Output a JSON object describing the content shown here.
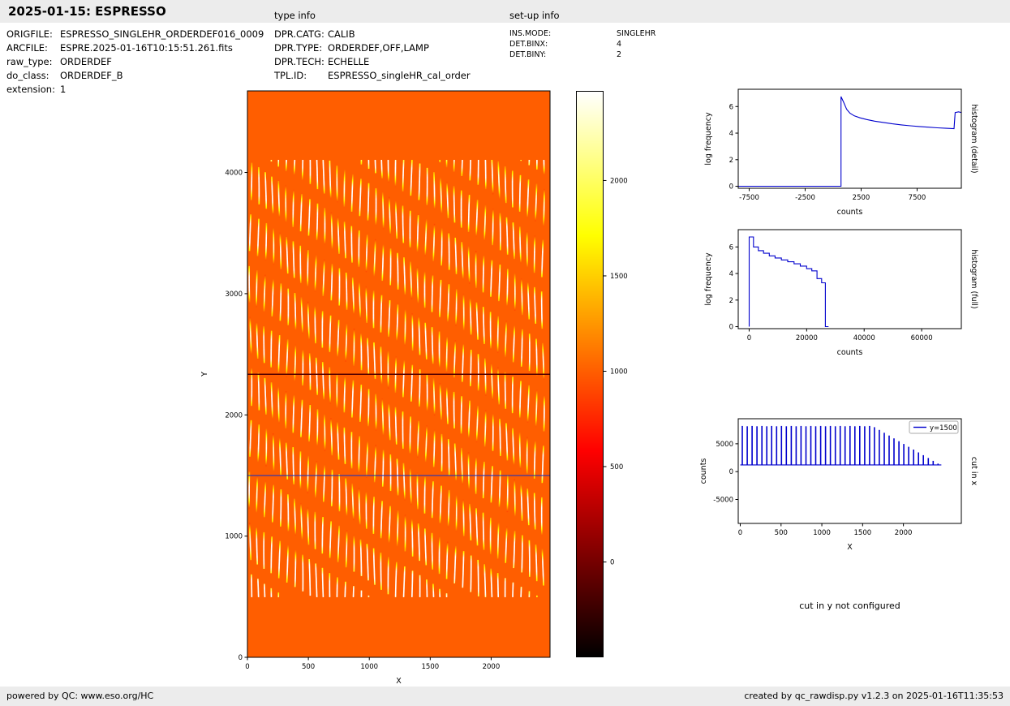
{
  "header": {
    "title": "2025-01-15: ESPRESSO",
    "type_info_label": "type info",
    "setup_info_label": "set-up info"
  },
  "metadata": {
    "file_info": [
      {
        "label": "ORIGFILE:",
        "value": "ESPRESSO_SINGLEHR_ORDERDEF016_0009"
      },
      {
        "label": "ARCFILE:",
        "value": "ESPRE.2025-01-16T10:15:51.261.fits"
      },
      {
        "label": "raw_type:",
        "value": "ORDERDEF"
      },
      {
        "label": "do_class:",
        "value": "ORDERDEF_B"
      },
      {
        "label": "extension:",
        "value": "1"
      }
    ],
    "type_info": [
      {
        "label": "DPR.CATG:",
        "value": "CALIB"
      },
      {
        "label": "DPR.TYPE:",
        "value": "ORDERDEF,OFF,LAMP"
      },
      {
        "label": "DPR.TECH:",
        "value": "ECHELLE"
      },
      {
        "label": "TPL.ID:",
        "value": "ESPRESSO_singleHR_cal_order"
      }
    ],
    "setup_info": [
      {
        "label": "INS.MODE:",
        "value": "SINGLEHR"
      },
      {
        "label": "DET.BINX:",
        "value": "4"
      },
      {
        "label": "DET.BINY:",
        "value": "2"
      }
    ]
  },
  "note_cut_y": "cut in y not configured",
  "footer": {
    "left": "powered by QC: www.eso.org/HC",
    "right": "created by qc_rawdisp.py v1.2.3 on 2025-01-16T11:35:53"
  },
  "chart_data": [
    {
      "id": "main_image",
      "type": "heatmap",
      "title": "",
      "xlabel": "X",
      "ylabel": "Y",
      "xlim": [
        0,
        2483
      ],
      "ylim": [
        0,
        4673
      ],
      "xticks": [
        0,
        500,
        1000,
        1500,
        2000
      ],
      "yticks": [
        0,
        1000,
        2000,
        3000,
        4000
      ],
      "colormap": "hot",
      "background_counts": 1000,
      "orders": {
        "count": 41,
        "x_first": 25,
        "x_spacing": 60,
        "y_bottom": 500,
        "y_top": 4100
      },
      "overlays": {
        "cut_line_y": 1500,
        "cut_line_color": "#2233bb",
        "dark_row_y": 2335
      },
      "colorbar": {
        "vmin": -500,
        "vmax": 2470,
        "ticks": [
          0,
          500,
          1000,
          1500,
          2000
        ]
      }
    },
    {
      "id": "hist_detail",
      "type": "line",
      "color": "#0000cd",
      "xlabel": "counts",
      "ylabel": "log frequency",
      "rlabel": "histogram (detail)",
      "xlim": [
        -8480,
        11450
      ],
      "ylim": [
        -0.15,
        7.3
      ],
      "xticks": [
        -7500,
        -2500,
        2500,
        7500
      ],
      "yticks": [
        0,
        2,
        4,
        6
      ],
      "points": [
        [
          -8480,
          0
        ],
        [
          700,
          0
        ],
        [
          700,
          6.75
        ],
        [
          950,
          6.3
        ],
        [
          1200,
          5.8
        ],
        [
          1500,
          5.5
        ],
        [
          1900,
          5.3
        ],
        [
          2400,
          5.15
        ],
        [
          3000,
          5.02
        ],
        [
          3700,
          4.9
        ],
        [
          4500,
          4.8
        ],
        [
          5300,
          4.7
        ],
        [
          6100,
          4.62
        ],
        [
          6900,
          4.55
        ],
        [
          7700,
          4.5
        ],
        [
          8500,
          4.45
        ],
        [
          9300,
          4.4
        ],
        [
          10100,
          4.36
        ],
        [
          10800,
          4.33
        ],
        [
          10900,
          5.55
        ],
        [
          11200,
          5.6
        ],
        [
          11450,
          5.55
        ]
      ]
    },
    {
      "id": "hist_full",
      "type": "line",
      "color": "#0000cd",
      "xlabel": "counts",
      "ylabel": "log frequency",
      "rlabel": "histogram (full)",
      "xlim": [
        -3800,
        73800
      ],
      "ylim": [
        -0.15,
        7.3
      ],
      "xticks": [
        0,
        20000,
        40000,
        60000
      ],
      "yticks": [
        0,
        2,
        4,
        6
      ],
      "points": [
        [
          0,
          0
        ],
        [
          0,
          6.75
        ],
        [
          1500,
          6.75
        ],
        [
          1500,
          6.0
        ],
        [
          3200,
          6.0
        ],
        [
          3200,
          5.72
        ],
        [
          5000,
          5.72
        ],
        [
          5000,
          5.52
        ],
        [
          7000,
          5.52
        ],
        [
          7000,
          5.33
        ],
        [
          9000,
          5.33
        ],
        [
          9000,
          5.17
        ],
        [
          11200,
          5.17
        ],
        [
          11200,
          5.02
        ],
        [
          13400,
          5.02
        ],
        [
          13400,
          4.88
        ],
        [
          15600,
          4.88
        ],
        [
          15600,
          4.73
        ],
        [
          17800,
          4.73
        ],
        [
          17800,
          4.56
        ],
        [
          20000,
          4.56
        ],
        [
          20000,
          4.36
        ],
        [
          21800,
          4.36
        ],
        [
          21800,
          4.2
        ],
        [
          23600,
          4.2
        ],
        [
          23600,
          3.62
        ],
        [
          25200,
          3.62
        ],
        [
          25200,
          3.3
        ],
        [
          26500,
          3.3
        ],
        [
          26500,
          0
        ],
        [
          27600,
          0
        ]
      ]
    },
    {
      "id": "cut_x",
      "type": "comb",
      "color": "#0000cd",
      "xlabel": "X",
      "ylabel": "counts",
      "rlabel": "cut in x",
      "legend": "y=1500",
      "xlim": [
        -25,
        2710
      ],
      "ylim": [
        -9300,
        9500
      ],
      "xticks": [
        0,
        500,
        1000,
        1500,
        2000
      ],
      "yticks": [
        -5000,
        0,
        5000
      ],
      "baseline": 1200,
      "spikes": [
        [
          25,
          8200
        ],
        [
          85,
          8150
        ],
        [
          145,
          8200
        ],
        [
          205,
          8150
        ],
        [
          265,
          8200
        ],
        [
          325,
          8150
        ],
        [
          385,
          8200
        ],
        [
          445,
          8150
        ],
        [
          505,
          8200
        ],
        [
          565,
          8150
        ],
        [
          625,
          8200
        ],
        [
          685,
          8150
        ],
        [
          745,
          8200
        ],
        [
          805,
          8150
        ],
        [
          865,
          8200
        ],
        [
          925,
          8150
        ],
        [
          985,
          8200
        ],
        [
          1045,
          8150
        ],
        [
          1105,
          8200
        ],
        [
          1165,
          8150
        ],
        [
          1225,
          8200
        ],
        [
          1285,
          8150
        ],
        [
          1345,
          8200
        ],
        [
          1405,
          8150
        ],
        [
          1465,
          8200
        ],
        [
          1525,
          8150
        ],
        [
          1585,
          8200
        ],
        [
          1645,
          7990
        ],
        [
          1705,
          7490
        ],
        [
          1765,
          6980
        ],
        [
          1825,
          6480
        ],
        [
          1885,
          5970
        ],
        [
          1945,
          5470
        ],
        [
          2005,
          4970
        ],
        [
          2065,
          4460
        ],
        [
          2125,
          3960
        ],
        [
          2185,
          3450
        ],
        [
          2245,
          2950
        ],
        [
          2305,
          2450
        ],
        [
          2365,
          1940
        ],
        [
          2425,
          1440
        ]
      ]
    }
  ]
}
